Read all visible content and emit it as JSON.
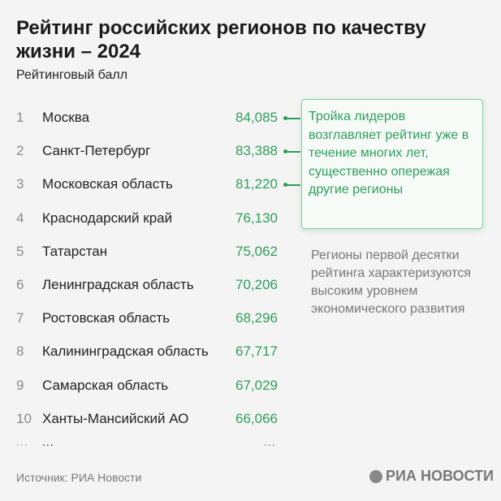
{
  "title": "Рейтинг российских регионов по качеству жизни – 2024",
  "subtitle": "Рейтинговый балл",
  "chart_data": {
    "type": "table",
    "columns": [
      "rank",
      "region",
      "score"
    ],
    "rows": [
      {
        "rank": "1",
        "name": "Москва",
        "value": "84,085"
      },
      {
        "rank": "2",
        "name": "Санкт-Петербург",
        "value": "83,388"
      },
      {
        "rank": "3",
        "name": "Московская область",
        "value": "81,220"
      },
      {
        "rank": "4",
        "name": "Краснодарский край",
        "value": "76,130"
      },
      {
        "rank": "5",
        "name": "Татарстан",
        "value": "75,062"
      },
      {
        "rank": "6",
        "name": "Ленинградская область",
        "value": "70,206"
      },
      {
        "rank": "7",
        "name": "Ростовская область",
        "value": "68,296"
      },
      {
        "rank": "8",
        "name": "Калининградская область",
        "value": "67,717"
      },
      {
        "rank": "9",
        "name": "Самарская область",
        "value": "67,029"
      },
      {
        "rank": "10",
        "name": "Ханты-Мансийский АО",
        "value": "66,066"
      }
    ],
    "ellipsis": "..."
  },
  "callout": "Тройка лидеров возглавляет рейтинг уже в течение многих лет, существенно опережая другие регионы",
  "note": "Регионы первой десятки рейтинга характеризуются высоким уровнем экономического развития",
  "source": "Источник: РИА Новости",
  "logo": "РИА НОВОСТИ",
  "colors": {
    "accent": "#2e9e5b"
  }
}
